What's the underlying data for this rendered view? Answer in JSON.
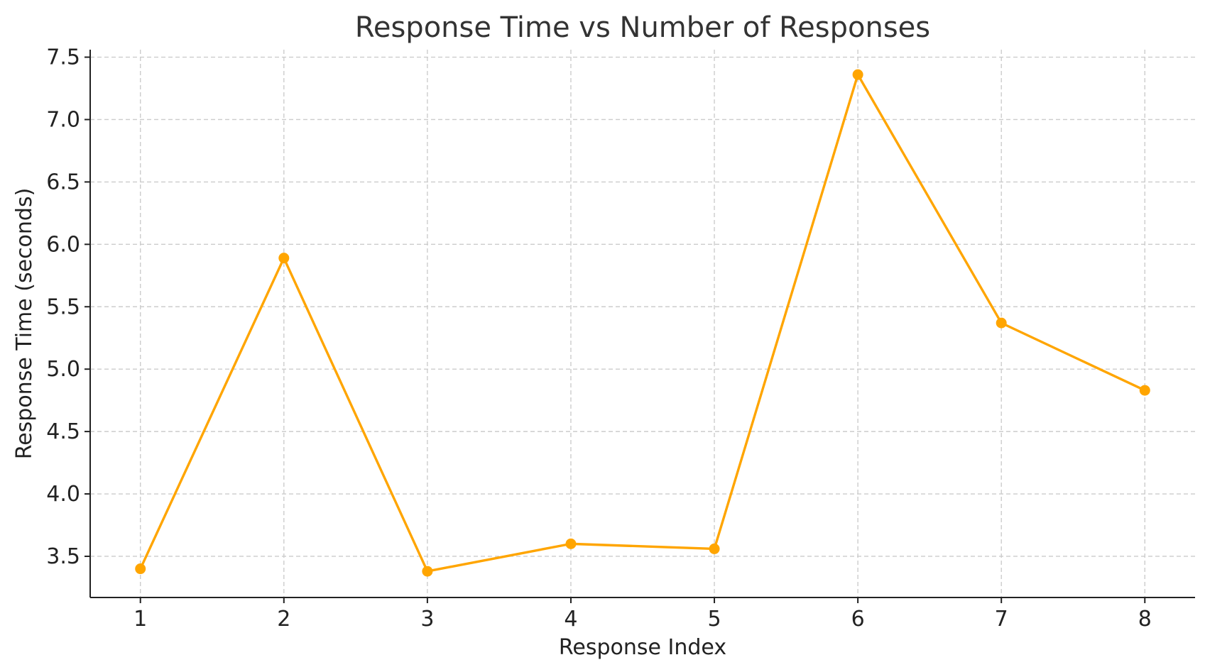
{
  "chart_data": {
    "type": "line",
    "title": "Response Time vs Number of Responses",
    "xlabel": "Response Index",
    "ylabel": "Response Time (seconds)",
    "x": [
      1,
      2,
      3,
      4,
      5,
      6,
      7,
      8
    ],
    "series": [
      {
        "values": [
          3.4,
          5.89,
          3.38,
          3.6,
          3.56,
          7.36,
          5.37,
          4.83
        ],
        "color": "#FFA500",
        "marker": "circle"
      }
    ],
    "xlim": [
      0.65,
      8.35
    ],
    "ylim": [
      3.17,
      7.56
    ],
    "xticks": [
      1,
      2,
      3,
      4,
      5,
      6,
      7,
      8
    ],
    "yticks": [
      "3.5",
      "4.0",
      "4.5",
      "5.0",
      "5.5",
      "6.0",
      "6.5",
      "7.0",
      "7.5"
    ],
    "grid": true,
    "legend": false
  }
}
